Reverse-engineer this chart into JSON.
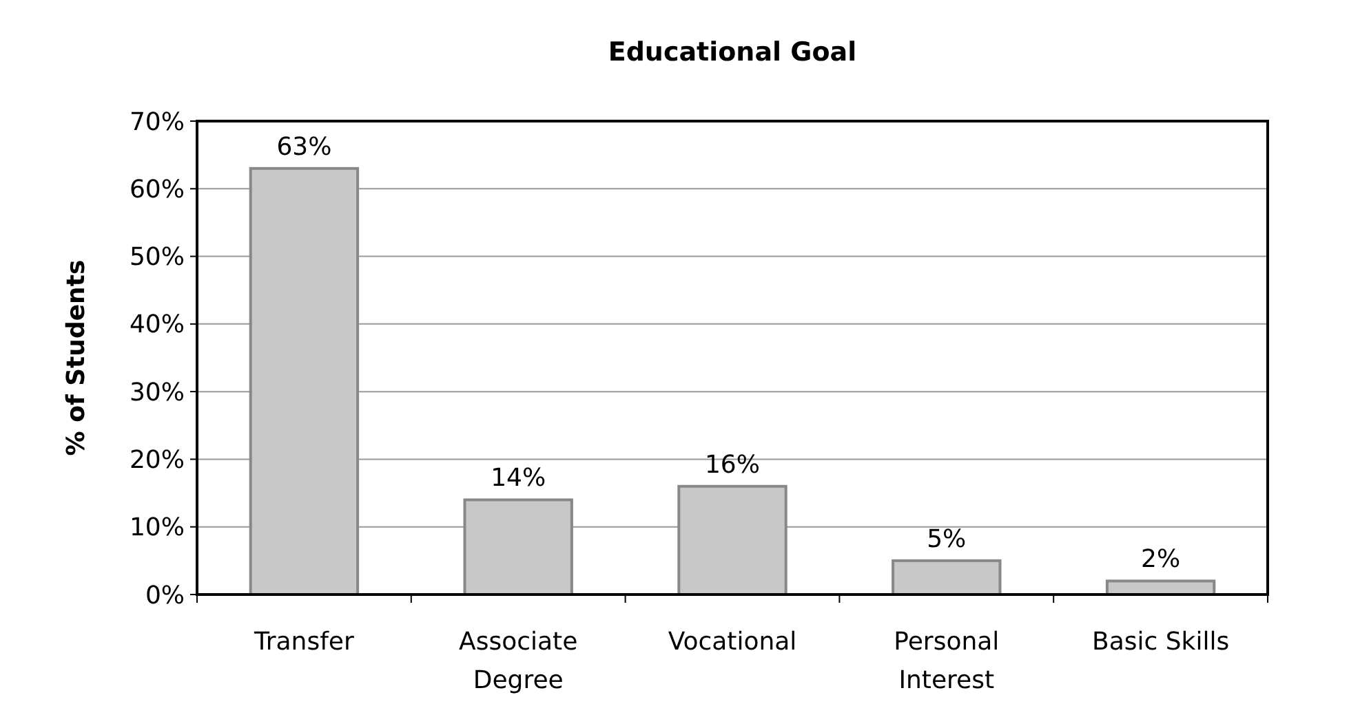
{
  "chart_data": {
    "type": "bar",
    "title": "Educational Goal",
    "ylabel": "% of Students",
    "categories": [
      "Transfer",
      "Associate Degree",
      "Vocational",
      "Personal Interest",
      "Basic Skills"
    ],
    "values": [
      63,
      14,
      16,
      5,
      2
    ],
    "value_labels": [
      "63%",
      "14%",
      "16%",
      "5%",
      "2%"
    ],
    "color": "#c8c8c8",
    "ylim": [
      0,
      70
    ],
    "yticks": [
      {
        "value": 0,
        "label": "0%"
      },
      {
        "value": 10,
        "label": "10%"
      },
      {
        "value": 20,
        "label": "20%"
      },
      {
        "value": 30,
        "label": "30%"
      },
      {
        "value": 40,
        "label": "40%"
      },
      {
        "value": 50,
        "label": "50%"
      },
      {
        "value": 60,
        "label": "60%"
      },
      {
        "value": 70,
        "label": "70%"
      }
    ],
    "grid": "y"
  }
}
